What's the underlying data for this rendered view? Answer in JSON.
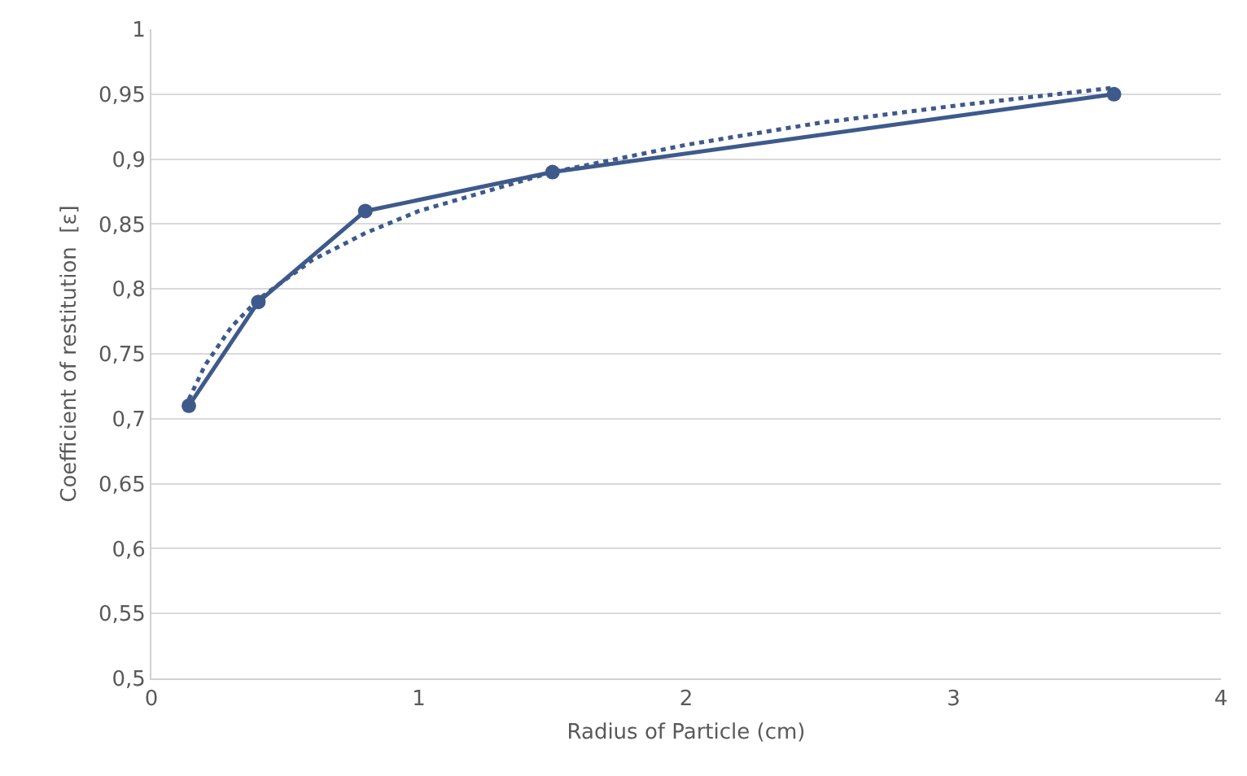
{
  "chart_data": {
    "type": "line",
    "xlabel": "Radius of Particle (cm)",
    "ylabel": "Coefficient of restitution  [ε]",
    "x": [
      0.14,
      0.4,
      0.8,
      1.5,
      3.6
    ],
    "series": [
      {
        "color": "#3e5a8c",
        "values": [
          0.71,
          0.79,
          0.86,
          0.89,
          0.95
        ],
        "marker": "circle",
        "line_style": "solid"
      },
      {
        "type": "line",
        "color": "#3e5a8c",
        "x": [
          0.14,
          0.2,
          0.3,
          0.4,
          0.6,
          0.8,
          1,
          1.5,
          2,
          2.5,
          3,
          3.6
        ],
        "values": [
          0.715,
          0.741,
          0.771,
          0.792,
          0.822,
          0.843,
          0.86,
          0.89,
          0.911,
          0.928,
          0.941,
          0.955
        ],
        "marker": "none",
        "line_style": "dotted"
      }
    ],
    "xlim": [
      0,
      4
    ],
    "xticks": [
      0,
      1,
      2,
      3,
      4
    ],
    "ylim": [
      0.5,
      1
    ],
    "yticks": [
      {
        "value": 0.5,
        "label": "0,5"
      },
      {
        "value": 0.55,
        "label": "0,55"
      },
      {
        "value": 0.6,
        "label": "0,6"
      },
      {
        "value": 0.65,
        "label": "0,65"
      },
      {
        "value": 0.7,
        "label": "0,7"
      },
      {
        "value": 0.75,
        "label": "0,75"
      },
      {
        "value": 0.8,
        "label": "0,8"
      },
      {
        "value": 0.85,
        "label": "0,85"
      },
      {
        "value": 0.9,
        "label": "0,9"
      },
      {
        "value": 0.95,
        "label": "0,95"
      },
      {
        "value": 1,
        "label": "1"
      }
    ],
    "grid": "y"
  }
}
